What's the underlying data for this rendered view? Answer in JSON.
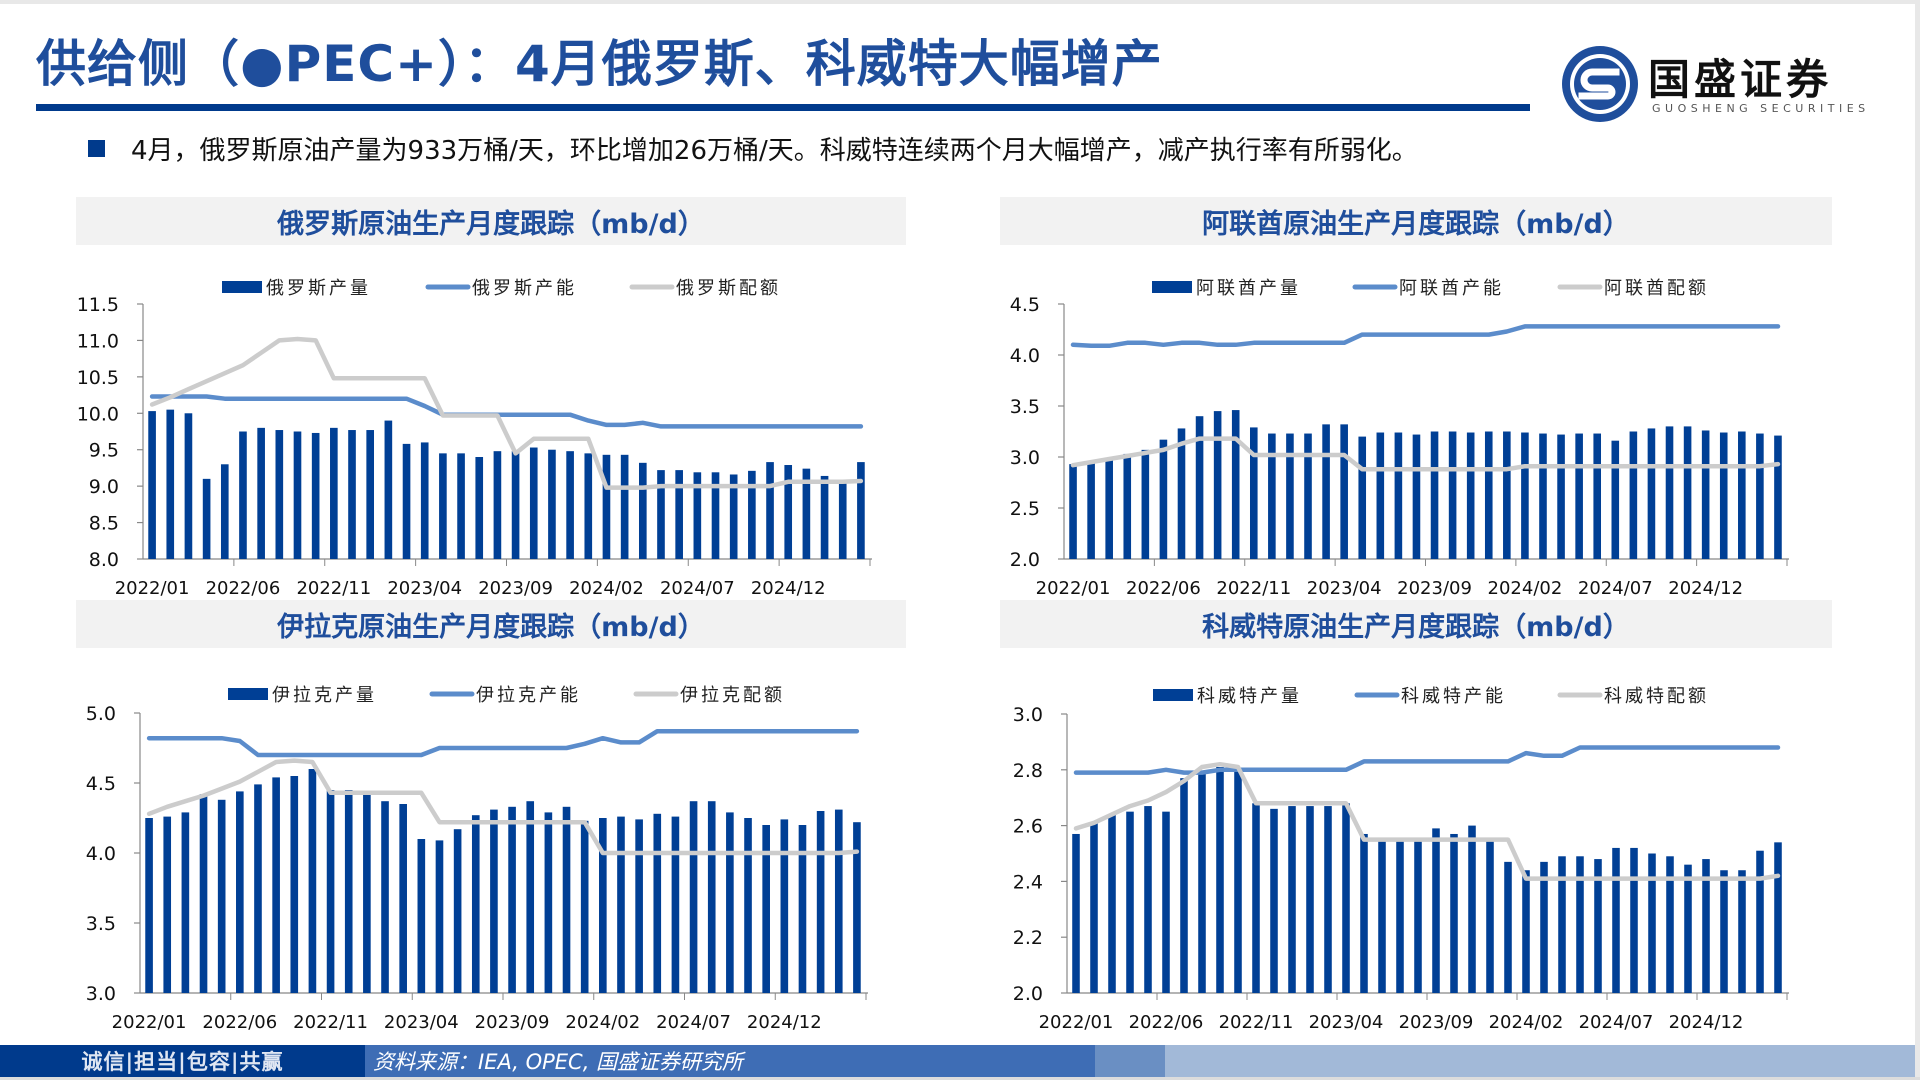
{
  "header": {
    "title": "供给侧（●PEC+）：4月俄罗斯、科威特大幅增产",
    "logo_name": "国盛证券",
    "logo_sub": "GUOSHENG SECURITIES"
  },
  "bullet": {
    "text": "4月，俄罗斯原油产量为933万桶/天，环比增加26万桶/天。科威特连续两个月大幅增产，减产执行率有所弱化。"
  },
  "colors": {
    "brand": "#003a8c",
    "title": "#1f4e9c",
    "bar": "#003f95",
    "capacity_line": "#5b8ccb",
    "quota_line": "#cccccc",
    "panel_bg": "#f2f2f2"
  },
  "footer": {
    "slogan": "诚信|担当|包容|共赢",
    "source": "资料来源：IEA, OPEC, 国盛证券研究所"
  },
  "chart_data": [
    {
      "id": "russia",
      "type": "bar",
      "title": "俄罗斯原油生产月度跟踪（mb/d）",
      "xlabel": "",
      "ylabel": "",
      "ylim": [
        8.0,
        11.5
      ],
      "yticks": [
        "8.0",
        "8.5",
        "9.0",
        "9.5",
        "10.0",
        "10.5",
        "11.0",
        "11.5"
      ],
      "ytick_values": [
        8.0,
        8.5,
        9.0,
        9.5,
        10.0,
        10.5,
        11.0,
        11.5
      ],
      "xtick_labels": [
        "2022/01",
        "2022/06",
        "2022/11",
        "2023/04",
        "2023/09",
        "2024/02",
        "2024/07",
        "2024/12"
      ],
      "xtick_every": 5,
      "grid": false,
      "legend_position": "top",
      "categories_start": "2022/01",
      "categories_end": "2025/04",
      "series": [
        {
          "name": "俄罗斯产量",
          "kind": "bar",
          "values": [
            10.03,
            10.05,
            10.0,
            9.1,
            9.3,
            9.75,
            9.8,
            9.77,
            9.75,
            9.73,
            9.8,
            9.77,
            9.77,
            9.9,
            9.58,
            9.6,
            9.45,
            9.45,
            9.4,
            9.48,
            9.48,
            9.53,
            9.5,
            9.48,
            9.45,
            9.43,
            9.43,
            9.32,
            9.22,
            9.22,
            9.19,
            9.19,
            9.16,
            9.21,
            9.33,
            9.29,
            9.24,
            9.14,
            9.07,
            9.33
          ]
        },
        {
          "name": "俄罗斯产能",
          "kind": "line",
          "values": [
            10.23,
            10.23,
            10.23,
            10.23,
            10.2,
            10.2,
            10.2,
            10.2,
            10.2,
            10.2,
            10.2,
            10.2,
            10.2,
            10.2,
            10.2,
            10.1,
            9.98,
            9.98,
            9.98,
            9.98,
            9.98,
            9.98,
            9.98,
            9.98,
            9.9,
            9.84,
            9.84,
            9.87,
            9.82,
            9.82,
            9.82,
            9.82,
            9.82,
            9.82,
            9.82,
            9.82,
            9.82,
            9.82,
            9.82,
            9.82
          ]
        },
        {
          "name": "俄罗斯配额",
          "kind": "line",
          "values": [
            10.12,
            10.22,
            10.33,
            10.44,
            10.55,
            10.66,
            10.83,
            11.0,
            11.02,
            11.0,
            10.48,
            10.48,
            10.48,
            10.48,
            10.48,
            10.48,
            9.97,
            9.97,
            9.97,
            9.97,
            9.45,
            9.65,
            9.65,
            9.65,
            9.65,
            8.98,
            8.98,
            8.98,
            9.0,
            9.0,
            9.0,
            9.0,
            9.0,
            9.0,
            9.0,
            9.06,
            9.06,
            9.06,
            9.06,
            9.07
          ]
        }
      ]
    },
    {
      "id": "uae",
      "type": "bar",
      "title": "阿联酋原油生产月度跟踪（mb/d）",
      "xlabel": "",
      "ylabel": "",
      "ylim": [
        2.0,
        4.5
      ],
      "yticks": [
        "2.0",
        "2.5",
        "3.0",
        "3.5",
        "4.0",
        "4.5"
      ],
      "ytick_values": [
        2.0,
        2.5,
        3.0,
        3.5,
        4.0,
        4.5
      ],
      "xtick_labels": [
        "2022/01",
        "2022/06",
        "2022/11",
        "2023/04",
        "2023/09",
        "2024/02",
        "2024/07",
        "2024/12"
      ],
      "xtick_every": 5,
      "grid": false,
      "legend_position": "top",
      "categories_start": "2022/01",
      "categories_end": "2025/04",
      "series": [
        {
          "name": "阿联酋产量",
          "kind": "bar",
          "values": [
            2.93,
            2.94,
            2.98,
            3.03,
            3.07,
            3.17,
            3.28,
            3.4,
            3.45,
            3.46,
            3.29,
            3.23,
            3.23,
            3.23,
            3.32,
            3.32,
            3.2,
            3.24,
            3.24,
            3.22,
            3.25,
            3.25,
            3.24,
            3.25,
            3.25,
            3.24,
            3.23,
            3.22,
            3.23,
            3.23,
            3.16,
            3.25,
            3.28,
            3.3,
            3.3,
            3.26,
            3.24,
            3.25,
            3.23,
            3.21
          ]
        },
        {
          "name": "阿联酋产能",
          "kind": "line",
          "values": [
            4.1,
            4.09,
            4.09,
            4.12,
            4.12,
            4.1,
            4.12,
            4.12,
            4.1,
            4.1,
            4.12,
            4.12,
            4.12,
            4.12,
            4.12,
            4.12,
            4.2,
            4.2,
            4.2,
            4.2,
            4.2,
            4.2,
            4.2,
            4.2,
            4.23,
            4.28,
            4.28,
            4.28,
            4.28,
            4.28,
            4.28,
            4.28,
            4.28,
            4.28,
            4.28,
            4.28,
            4.28,
            4.28,
            4.28,
            4.28
          ]
        },
        {
          "name": "阿联酋配额",
          "kind": "line",
          "values": [
            2.92,
            2.95,
            2.98,
            3.01,
            3.04,
            3.07,
            3.13,
            3.18,
            3.18,
            3.18,
            3.02,
            3.02,
            3.02,
            3.02,
            3.02,
            3.02,
            2.88,
            2.88,
            2.88,
            2.88,
            2.88,
            2.88,
            2.88,
            2.88,
            2.88,
            2.91,
            2.91,
            2.91,
            2.91,
            2.91,
            2.91,
            2.91,
            2.91,
            2.91,
            2.91,
            2.91,
            2.91,
            2.91,
            2.91,
            2.93
          ]
        }
      ]
    },
    {
      "id": "iraq",
      "type": "bar",
      "title": "伊拉克原油生产月度跟踪（mb/d）",
      "xlabel": "",
      "ylabel": "",
      "ylim": [
        3.0,
        5.0
      ],
      "yticks": [
        "3.0",
        "3.5",
        "4.0",
        "4.5",
        "5.0"
      ],
      "ytick_values": [
        3.0,
        3.5,
        4.0,
        4.5,
        5.0
      ],
      "xtick_labels": [
        "2022/01",
        "2022/06",
        "2022/11",
        "2023/04",
        "2023/09",
        "2024/02",
        "2024/07",
        "2024/12"
      ],
      "xtick_every": 5,
      "grid": false,
      "legend_position": "top",
      "categories_start": "2022/01",
      "categories_end": "2025/04",
      "series": [
        {
          "name": "伊拉克产量",
          "kind": "bar",
          "values": [
            4.25,
            4.26,
            4.29,
            4.42,
            4.38,
            4.44,
            4.49,
            4.54,
            4.55,
            4.6,
            4.45,
            4.45,
            4.42,
            4.37,
            4.35,
            4.1,
            4.09,
            4.17,
            4.27,
            4.31,
            4.33,
            4.37,
            4.29,
            4.33,
            4.23,
            4.25,
            4.26,
            4.24,
            4.28,
            4.26,
            4.37,
            4.37,
            4.29,
            4.25,
            4.2,
            4.24,
            4.2,
            4.3,
            4.31,
            4.22
          ]
        },
        {
          "name": "伊拉克产能",
          "kind": "line",
          "values": [
            4.82,
            4.82,
            4.82,
            4.82,
            4.82,
            4.8,
            4.7,
            4.7,
            4.7,
            4.7,
            4.7,
            4.7,
            4.7,
            4.7,
            4.7,
            4.7,
            4.75,
            4.75,
            4.75,
            4.75,
            4.75,
            4.75,
            4.75,
            4.75,
            4.78,
            4.82,
            4.79,
            4.79,
            4.87,
            4.87,
            4.87,
            4.87,
            4.87,
            4.87,
            4.87,
            4.87,
            4.87,
            4.87,
            4.87,
            4.87
          ]
        },
        {
          "name": "伊拉克配额",
          "kind": "line",
          "values": [
            4.28,
            4.33,
            4.37,
            4.41,
            4.46,
            4.51,
            4.58,
            4.65,
            4.66,
            4.65,
            4.43,
            4.43,
            4.43,
            4.43,
            4.43,
            4.43,
            4.22,
            4.22,
            4.22,
            4.22,
            4.22,
            4.22,
            4.22,
            4.22,
            4.22,
            4.0,
            4.0,
            4.0,
            4.0,
            4.0,
            4.0,
            4.0,
            4.0,
            4.0,
            4.0,
            4.0,
            4.0,
            4.0,
            4.0,
            4.01
          ]
        }
      ]
    },
    {
      "id": "kuwait",
      "type": "bar",
      "title": "科威特原油生产月度跟踪（mb/d）",
      "xlabel": "",
      "ylabel": "",
      "ylim": [
        2.0,
        3.0
      ],
      "yticks": [
        "2.0",
        "2.2",
        "2.4",
        "2.6",
        "2.8",
        "3.0"
      ],
      "ytick_values": [
        2.0,
        2.2,
        2.4,
        2.6,
        2.8,
        3.0
      ],
      "xtick_labels": [
        "2022/01",
        "2022/06",
        "2022/11",
        "2023/04",
        "2023/09",
        "2024/02",
        "2024/07",
        "2024/12"
      ],
      "xtick_every": 5,
      "grid": false,
      "legend_position": "top",
      "categories_start": "2022/01",
      "categories_end": "2025/04",
      "series": [
        {
          "name": "科威特产量",
          "kind": "bar",
          "values": [
            2.57,
            2.61,
            2.64,
            2.65,
            2.67,
            2.65,
            2.77,
            2.79,
            2.81,
            2.8,
            2.68,
            2.66,
            2.67,
            2.67,
            2.67,
            2.68,
            2.57,
            2.55,
            2.55,
            2.55,
            2.59,
            2.57,
            2.6,
            2.55,
            2.47,
            2.44,
            2.47,
            2.49,
            2.49,
            2.48,
            2.52,
            2.52,
            2.5,
            2.49,
            2.46,
            2.48,
            2.44,
            2.44,
            2.51,
            2.54
          ]
        },
        {
          "name": "科威特产能",
          "kind": "line",
          "values": [
            2.79,
            2.79,
            2.79,
            2.79,
            2.79,
            2.8,
            2.79,
            2.79,
            2.8,
            2.8,
            2.8,
            2.8,
            2.8,
            2.8,
            2.8,
            2.8,
            2.83,
            2.83,
            2.83,
            2.83,
            2.83,
            2.83,
            2.83,
            2.83,
            2.83,
            2.86,
            2.85,
            2.85,
            2.88,
            2.88,
            2.88,
            2.88,
            2.88,
            2.88,
            2.88,
            2.88,
            2.88,
            2.88,
            2.88,
            2.88
          ]
        },
        {
          "name": "科威特配额",
          "kind": "line",
          "values": [
            2.59,
            2.61,
            2.64,
            2.67,
            2.69,
            2.72,
            2.76,
            2.81,
            2.82,
            2.81,
            2.68,
            2.68,
            2.68,
            2.68,
            2.68,
            2.68,
            2.55,
            2.55,
            2.55,
            2.55,
            2.55,
            2.55,
            2.55,
            2.55,
            2.55,
            2.41,
            2.41,
            2.41,
            2.41,
            2.41,
            2.41,
            2.41,
            2.41,
            2.41,
            2.41,
            2.41,
            2.41,
            2.41,
            2.41,
            2.42
          ]
        }
      ]
    }
  ]
}
